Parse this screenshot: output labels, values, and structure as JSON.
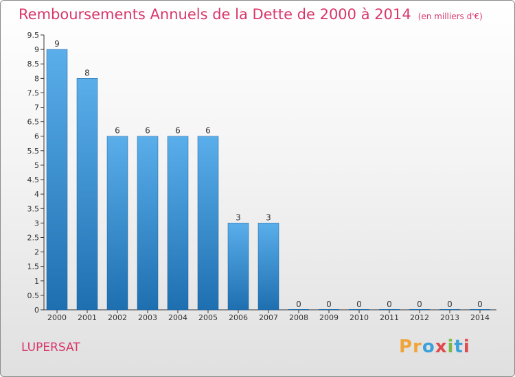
{
  "title": "Remboursements Annuels de la Dette de 2000 à 2014",
  "unit_note": "(en milliers d'€)",
  "commune": "LUPERSAT",
  "brand": {
    "p1": "Pr",
    "p2": "o",
    "p3": "x",
    "p4": "i",
    "p5": "t",
    "p6": "i"
  },
  "colors": {
    "title": "#d8366a",
    "bar_light": "#5aaeea",
    "bar_dark": "#1e6fb0",
    "axis": "#333333"
  },
  "chart_data": {
    "type": "bar",
    "title": "Remboursements Annuels de la Dette de 2000 à 2014",
    "categories": [
      "2000",
      "2001",
      "2002",
      "2003",
      "2004",
      "2005",
      "2006",
      "2007",
      "2008",
      "2009",
      "2010",
      "2011",
      "2012",
      "2013",
      "2014"
    ],
    "values": [
      9,
      8,
      6,
      6,
      6,
      6,
      3,
      3,
      0,
      0,
      0,
      0,
      0,
      0,
      0
    ],
    "data_labels": [
      "9",
      "8",
      "6",
      "6",
      "6",
      "6",
      "3",
      "3",
      "0",
      "0",
      "0",
      "0",
      "0",
      "0",
      "0"
    ],
    "yticks": [
      "0",
      "0.5",
      "1",
      "1.5",
      "2",
      "2.5",
      "3",
      "3.5",
      "4",
      "4.5",
      "5",
      "5.5",
      "6",
      "6.5",
      "7",
      "7.5",
      "8",
      "8.5",
      "9",
      "9.5"
    ],
    "ylim": [
      0,
      9.5
    ],
    "xlabel": "",
    "ylabel": "",
    "grid": false
  }
}
